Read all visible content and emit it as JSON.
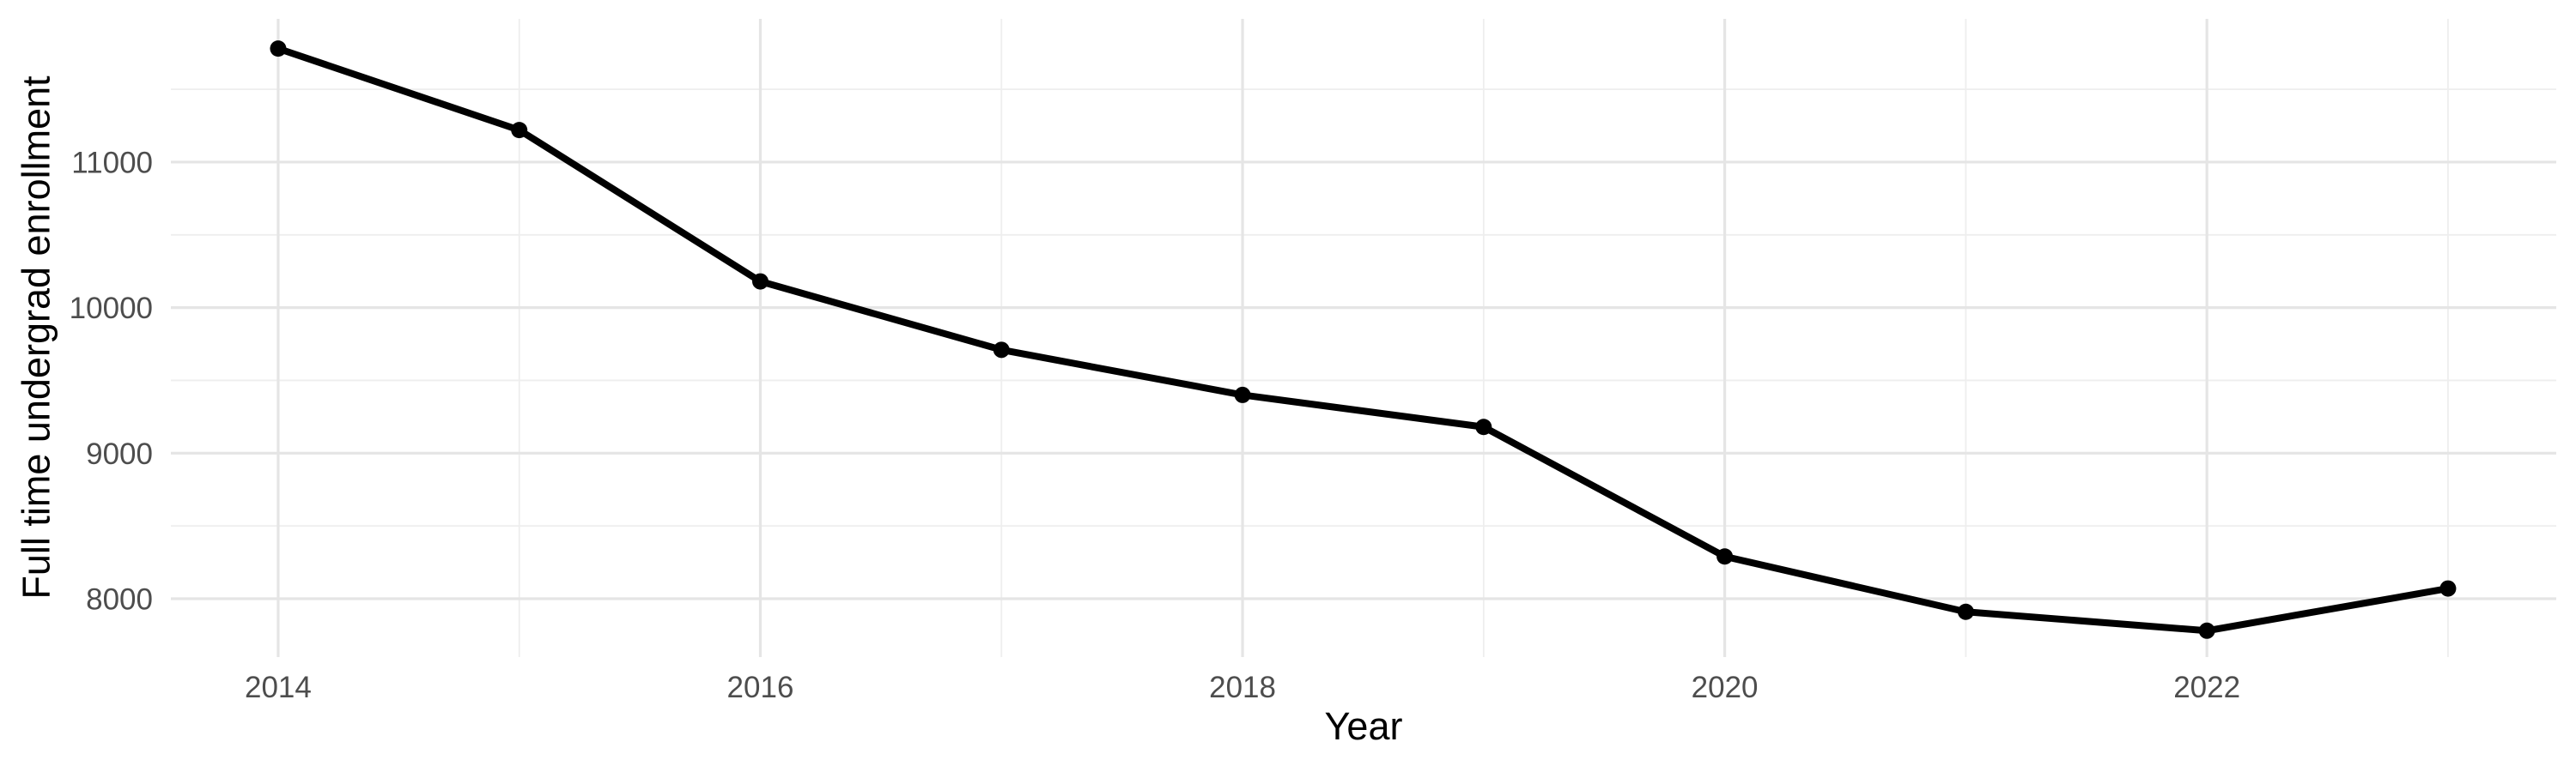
{
  "chart_data": {
    "type": "line",
    "title": "",
    "xlabel": "Year",
    "ylabel": "Full time undergrad enrollment",
    "x": [
      2014,
      2015,
      2016,
      2017,
      2018,
      2019,
      2020,
      2021,
      2022,
      2023
    ],
    "values": [
      11780,
      11220,
      10180,
      9710,
      9400,
      9180,
      8290,
      7910,
      7780,
      8070
    ],
    "series_name": "Full time undergrad enrollment",
    "xlim": [
      2013.555,
      2023.449
    ],
    "ylim": [
      7599,
      11984
    ],
    "x_major_ticks": [
      2014,
      2016,
      2018,
      2020,
      2022
    ],
    "x_major_tick_labels": [
      "2014",
      "2016",
      "2018",
      "2020",
      "2022"
    ],
    "x_minor_ticks": [
      2015,
      2017,
      2019,
      2021,
      2023
    ],
    "y_major_ticks": [
      8000,
      9000,
      10000,
      11000
    ],
    "y_major_tick_labels": [
      "8000",
      "9000",
      "10000",
      "11000"
    ],
    "y_minor_ticks": [
      8500,
      9500,
      10500,
      11500
    ],
    "grid": true,
    "legend": false,
    "colors": {
      "line": "#000000",
      "point": "#000000",
      "grid_major": "#E5E5E5",
      "grid_minor": "#EEEEEE",
      "tick_label": "#4D4D4D",
      "axis_title": "#000000",
      "background": "#FFFFFF"
    }
  }
}
